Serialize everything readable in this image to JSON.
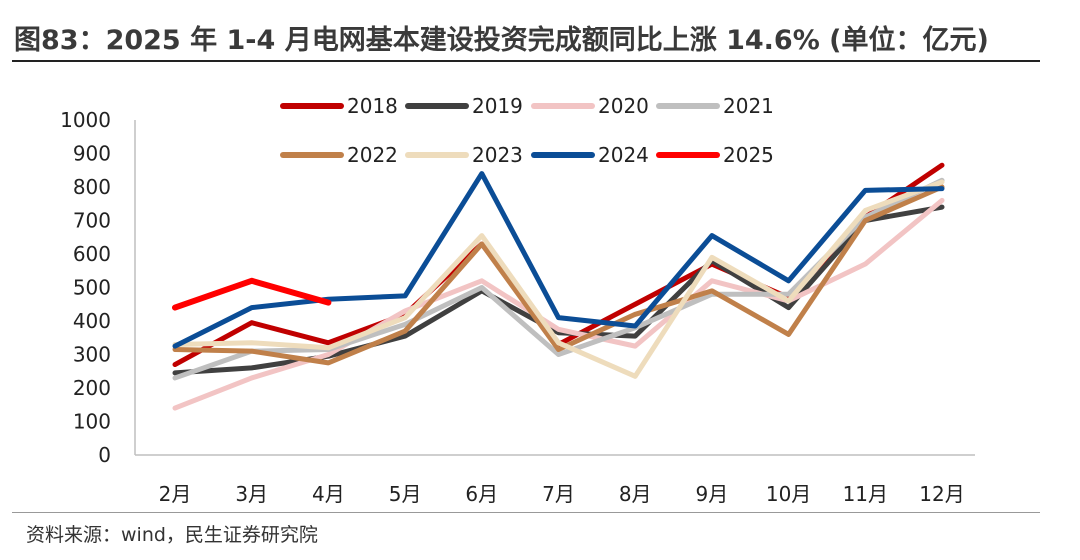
{
  "title": "图83：2025 年 1-4 月电网基本建设投资完成额同比上涨 14.6% (单位：亿元)",
  "source": "资料来源：wind，民生证券研究院",
  "chart_data": {
    "type": "line",
    "title": "图83：2025 年 1-4 月电网基本建设投资完成额同比上涨 14.6% (单位：亿元)",
    "xlabel": "",
    "ylabel": "",
    "ylim": [
      0,
      1000
    ],
    "yticks": [
      0,
      100,
      200,
      300,
      400,
      500,
      600,
      700,
      800,
      900,
      1000
    ],
    "categories": [
      "2月",
      "3月",
      "4月",
      "5月",
      "6月",
      "7月",
      "8月",
      "9月",
      "10月",
      "11月",
      "12月"
    ],
    "grid": false,
    "legend_position": "top",
    "series": [
      {
        "name": "2018",
        "color": "#c00000",
        "values": [
          270,
          395,
          335,
          420,
          630,
          330,
          450,
          570,
          470,
          710,
          865
        ]
      },
      {
        "name": "2019",
        "color": "#404040",
        "values": [
          245,
          260,
          295,
          355,
          490,
          365,
          355,
          580,
          440,
          700,
          740
        ]
      },
      {
        "name": "2020",
        "color": "#f2c4c4",
        "values": [
          140,
          230,
          300,
          430,
          520,
          375,
          325,
          520,
          460,
          570,
          760
        ]
      },
      {
        "name": "2021",
        "color": "#bfbfbf",
        "values": [
          230,
          310,
          315,
          390,
          500,
          300,
          380,
          480,
          480,
          710,
          820
        ]
      },
      {
        "name": "2022",
        "color": "#c0804a",
        "values": [
          315,
          310,
          275,
          370,
          630,
          315,
          420,
          490,
          360,
          700,
          800
        ]
      },
      {
        "name": "2023",
        "color": "#eedcbc",
        "values": [
          330,
          335,
          320,
          410,
          655,
          335,
          235,
          590,
          460,
          730,
          815
        ]
      },
      {
        "name": "2024",
        "color": "#0b4d96",
        "values": [
          325,
          440,
          465,
          475,
          840,
          410,
          385,
          655,
          520,
          790,
          795
        ]
      },
      {
        "name": "2025",
        "color": "#ff0000",
        "values": [
          440,
          520,
          455,
          null,
          null,
          null,
          null,
          null,
          null,
          null,
          null
        ]
      }
    ]
  }
}
